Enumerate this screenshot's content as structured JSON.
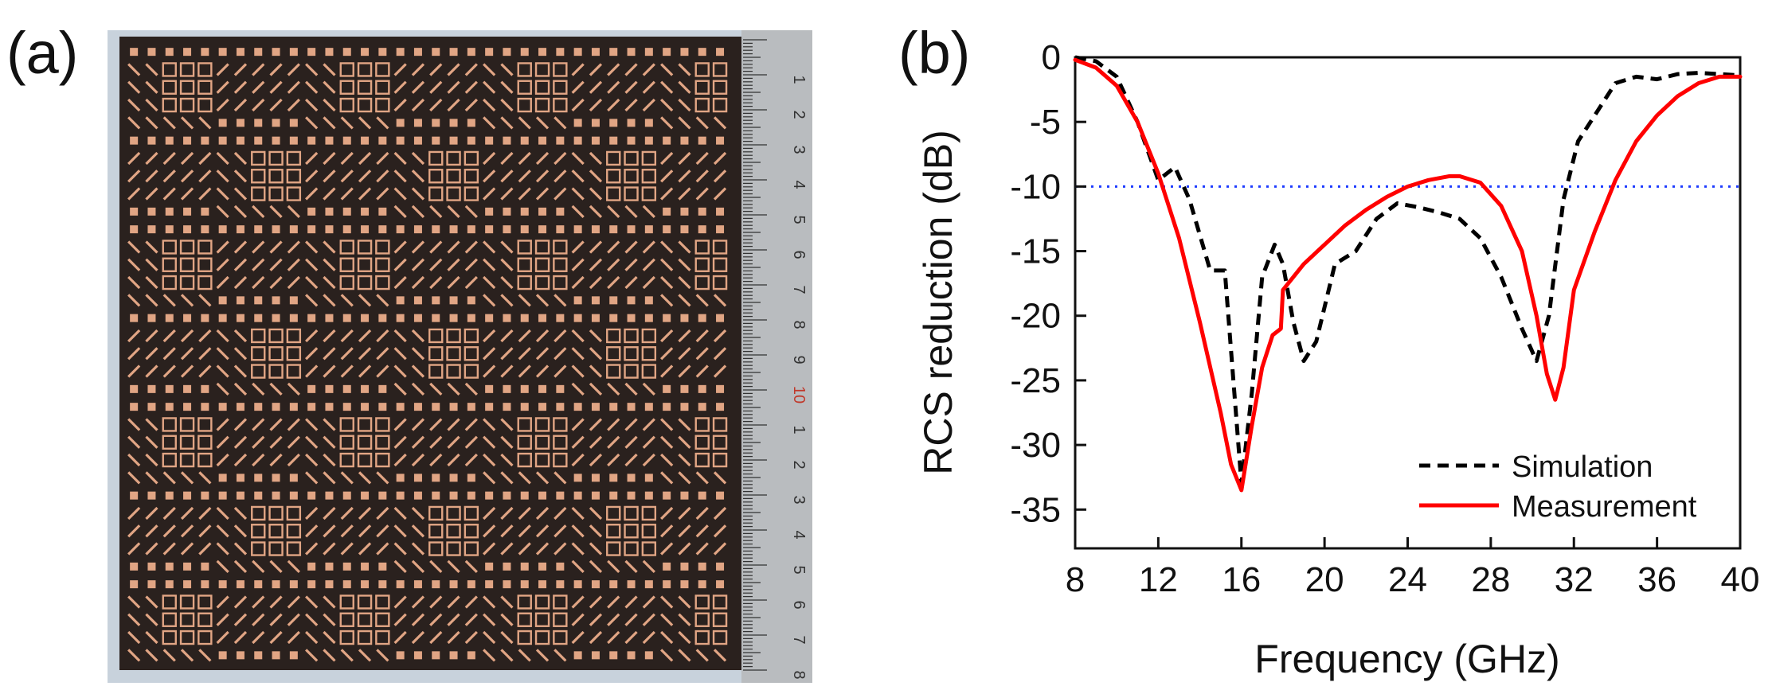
{
  "panels": {
    "a_label": "(a)",
    "b_label": "(b)"
  },
  "photo": {
    "ruler_numbers": [
      "1",
      "2",
      "3",
      "4",
      "5",
      "6",
      "7",
      "8",
      "9",
      "10",
      "1",
      "2",
      "3",
      "4",
      "5",
      "6",
      "7",
      "8"
    ],
    "colors": {
      "board": "#2a211e",
      "copper": "#e1a584",
      "ruler": "#b9bcbf",
      "backdrop": "#c8d2dc"
    }
  },
  "chart_data": {
    "type": "line",
    "title": "",
    "xlabel": "Frequency (GHz)",
    "ylabel": "RCS reduction (dB)",
    "xlim": [
      8,
      40
    ],
    "ylim": [
      -38,
      0
    ],
    "xticks": [
      8,
      12,
      16,
      20,
      24,
      28,
      32,
      36,
      40
    ],
    "yticks": [
      0,
      -5,
      -10,
      -15,
      -20,
      -25,
      -30,
      -35
    ],
    "grid": false,
    "legend_position": "bottom-right",
    "reference_line": {
      "y": -10,
      "style": "dotted",
      "color": "#1f3cff"
    },
    "series": [
      {
        "name": "Simulation",
        "style": "dashed",
        "color": "#000000",
        "x": [
          8,
          9,
          10,
          11,
          12,
          12.8,
          13.5,
          14.5,
          15.2,
          16,
          16.5,
          17,
          17.6,
          18,
          18.5,
          19,
          19.6,
          20.5,
          21.5,
          22.5,
          23.5,
          24.5,
          25.5,
          26.5,
          27.5,
          28.5,
          29.5,
          30.2,
          30.8,
          31.5,
          32.2,
          33,
          34,
          35,
          36,
          37,
          38,
          39,
          40
        ],
        "y": [
          0,
          -0.3,
          -1.5,
          -5,
          -9.5,
          -8.5,
          -11,
          -16.5,
          -16.5,
          -33,
          -26,
          -17,
          -14.5,
          -16,
          -20.5,
          -23.5,
          -22,
          -16,
          -15,
          -12.5,
          -11.3,
          -11.6,
          -12,
          -12.5,
          -14,
          -17,
          -21,
          -23.5,
          -20,
          -11,
          -6.5,
          -4.5,
          -2,
          -1.5,
          -1.7,
          -1.3,
          -1.2,
          -1.3,
          -1.4
        ]
      },
      {
        "name": "Measurement",
        "style": "solid",
        "color": "#ff0000",
        "x": [
          8,
          9,
          10,
          11,
          12,
          13,
          14,
          15,
          15.5,
          16,
          16.5,
          17,
          17.5,
          17.9,
          18,
          19,
          20,
          21,
          22,
          23,
          24,
          25,
          26,
          26.5,
          27.5,
          28.5,
          29.5,
          30.2,
          30.7,
          31.1,
          31.5,
          32,
          33,
          34,
          35,
          36,
          37,
          38,
          39,
          40
        ],
        "y": [
          -0.2,
          -0.8,
          -2.2,
          -5,
          -9,
          -14,
          -20.5,
          -27.5,
          -31.5,
          -33.5,
          -28.5,
          -24,
          -21.5,
          -21,
          -18,
          -16,
          -14.5,
          -13,
          -11.8,
          -10.8,
          -10,
          -9.5,
          -9.2,
          -9.2,
          -9.7,
          -11.5,
          -15,
          -20,
          -24.5,
          -26.5,
          -24,
          -18,
          -13.5,
          -9.5,
          -6.5,
          -4.5,
          -3,
          -2,
          -1.5,
          -1.5
        ]
      }
    ]
  }
}
